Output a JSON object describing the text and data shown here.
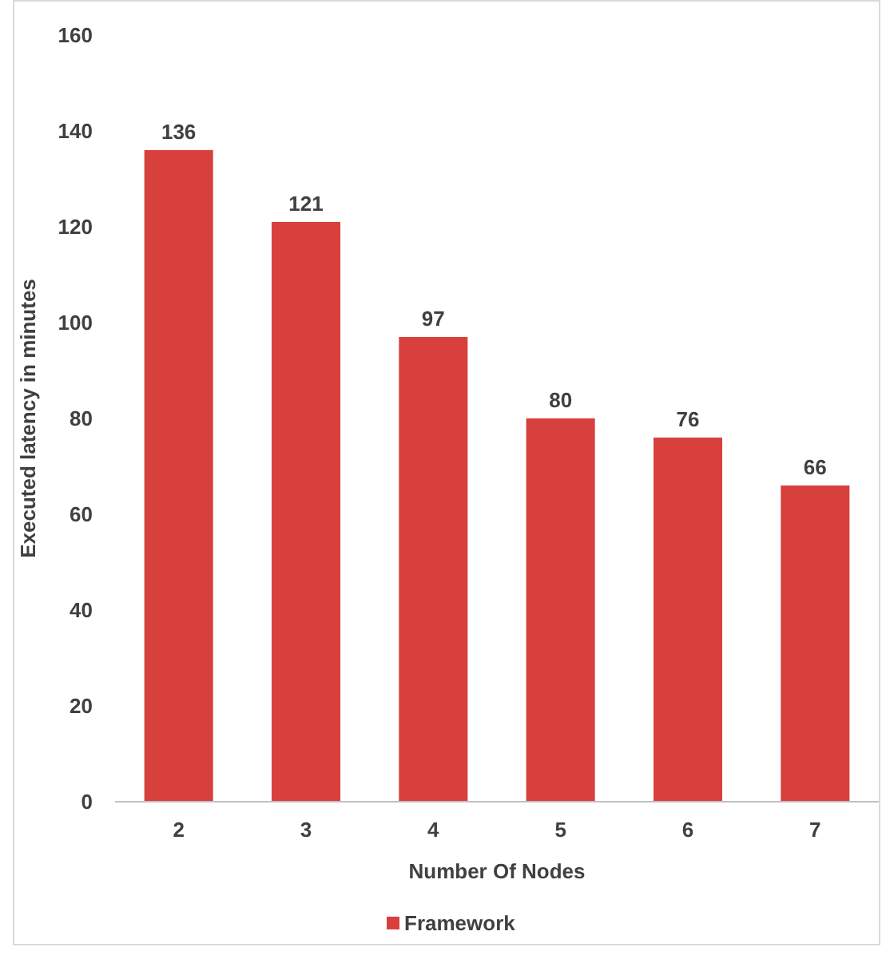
{
  "chart_data": {
    "type": "bar",
    "xlabel": "Number Of Nodes",
    "ylabel": "Executed latency in minutes",
    "categories": [
      "2",
      "3",
      "4",
      "5",
      "6",
      "7"
    ],
    "series": [
      {
        "name": "Framework",
        "color": "#d8403d",
        "values": [
          136,
          121,
          97,
          80,
          76,
          66
        ]
      }
    ],
    "ylim": [
      0,
      160
    ],
    "yticks": [
      0,
      20,
      40,
      60,
      80,
      100,
      120,
      140,
      160
    ],
    "data_labels": true,
    "legend": "bottom",
    "grid": false
  }
}
